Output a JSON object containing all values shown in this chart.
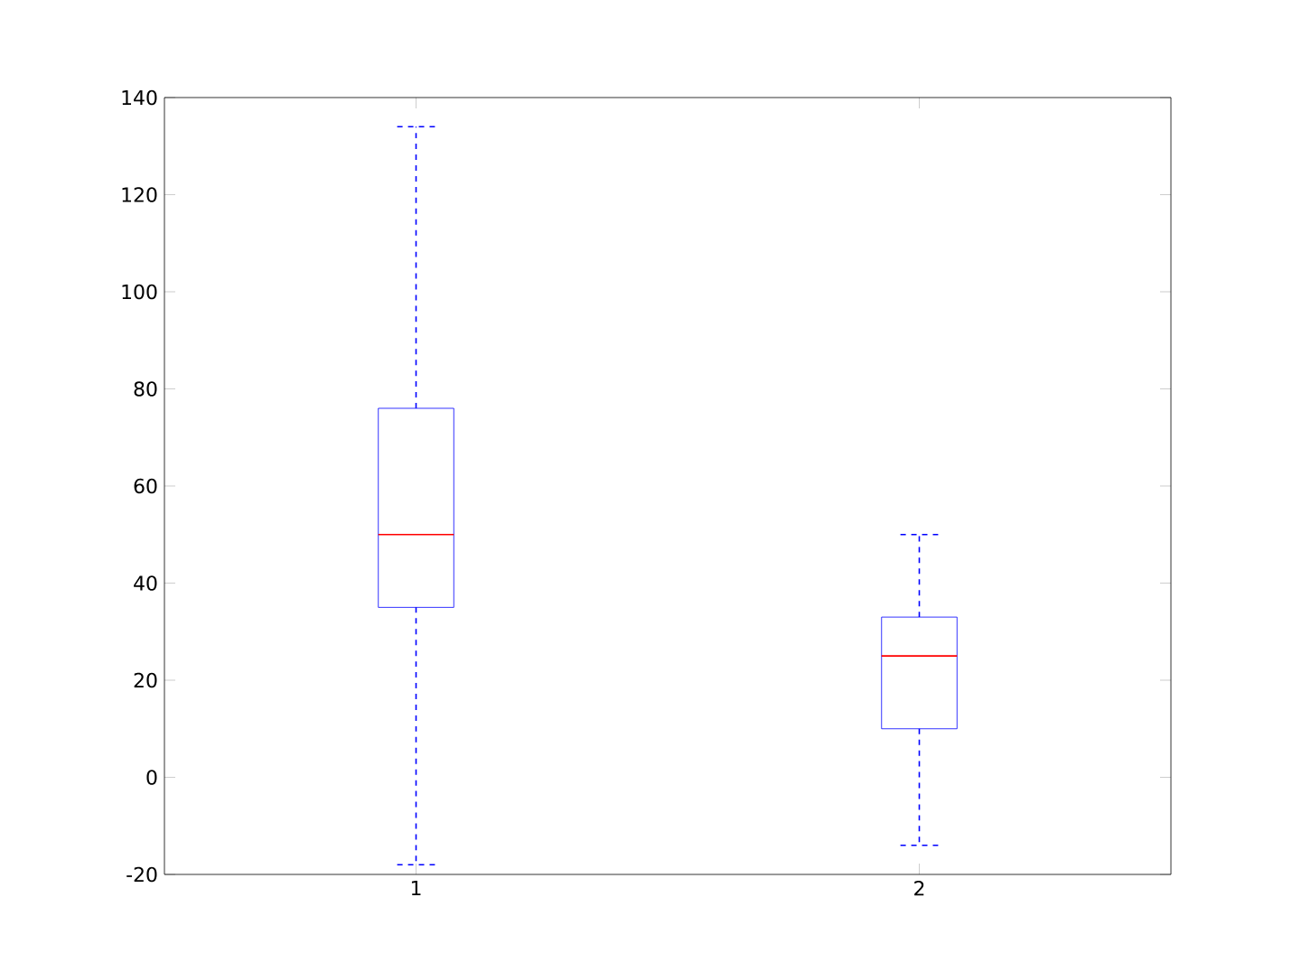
{
  "chart_data": {
    "type": "box",
    "categories": [
      "1",
      "2"
    ],
    "boxes": [
      {
        "low": -18,
        "q1": 35,
        "median": 50,
        "q3": 76,
        "high": 134
      },
      {
        "low": -14,
        "q1": 10,
        "median": 25,
        "q3": 33,
        "high": 50
      }
    ],
    "color": "#0000ff",
    "ylim": [
      -20,
      140
    ],
    "yticks": [
      -20,
      0,
      20,
      40,
      60,
      80,
      100,
      120,
      140
    ],
    "grid": false
  }
}
